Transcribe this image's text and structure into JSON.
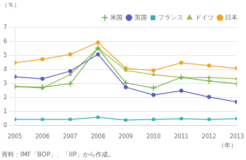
{
  "chart_data": {
    "type": "line",
    "ylabel": "（％）",
    "xlabel": "（年）",
    "footnote": "資料：IMF「BOP」、「IIP」から作成。",
    "categories": [
      "2005",
      "2006",
      "2007",
      "2008",
      "2009",
      "2010",
      "2011",
      "2012",
      "2013"
    ],
    "series": [
      {
        "name": "米国",
        "color": "#6ab040",
        "marker": "plus",
        "values": [
          2.8,
          2.75,
          3.0,
          5.55,
          3.05,
          2.7,
          3.45,
          3.2,
          3.0
        ]
      },
      {
        "name": "英国",
        "color": "#5555cc",
        "marker": "circle",
        "values": [
          3.5,
          3.35,
          3.9,
          5.1,
          2.75,
          2.2,
          2.5,
          2.05,
          1.7
        ]
      },
      {
        "name": "フランス",
        "color": "#30b0b0",
        "marker": "square",
        "values": [
          0.45,
          0.45,
          0.45,
          0.6,
          0.4,
          0.45,
          0.5,
          0.45,
          0.5
        ]
      },
      {
        "name": "ドイツ",
        "color": "#99bb44",
        "marker": "triangle",
        "values": [
          2.8,
          2.7,
          3.65,
          5.55,
          3.95,
          3.65,
          3.45,
          3.45,
          3.35
        ]
      },
      {
        "name": "日本",
        "color": "#f5a020",
        "marker": "circle",
        "values": [
          4.5,
          4.75,
          5.1,
          5.95,
          4.1,
          3.95,
          4.5,
          4.3,
          4.1
        ]
      }
    ],
    "ylim": [
      0,
      7
    ],
    "yticks": [
      0,
      1,
      2,
      3,
      4,
      5,
      6,
      7
    ],
    "grid": true,
    "legend": "upper right"
  }
}
